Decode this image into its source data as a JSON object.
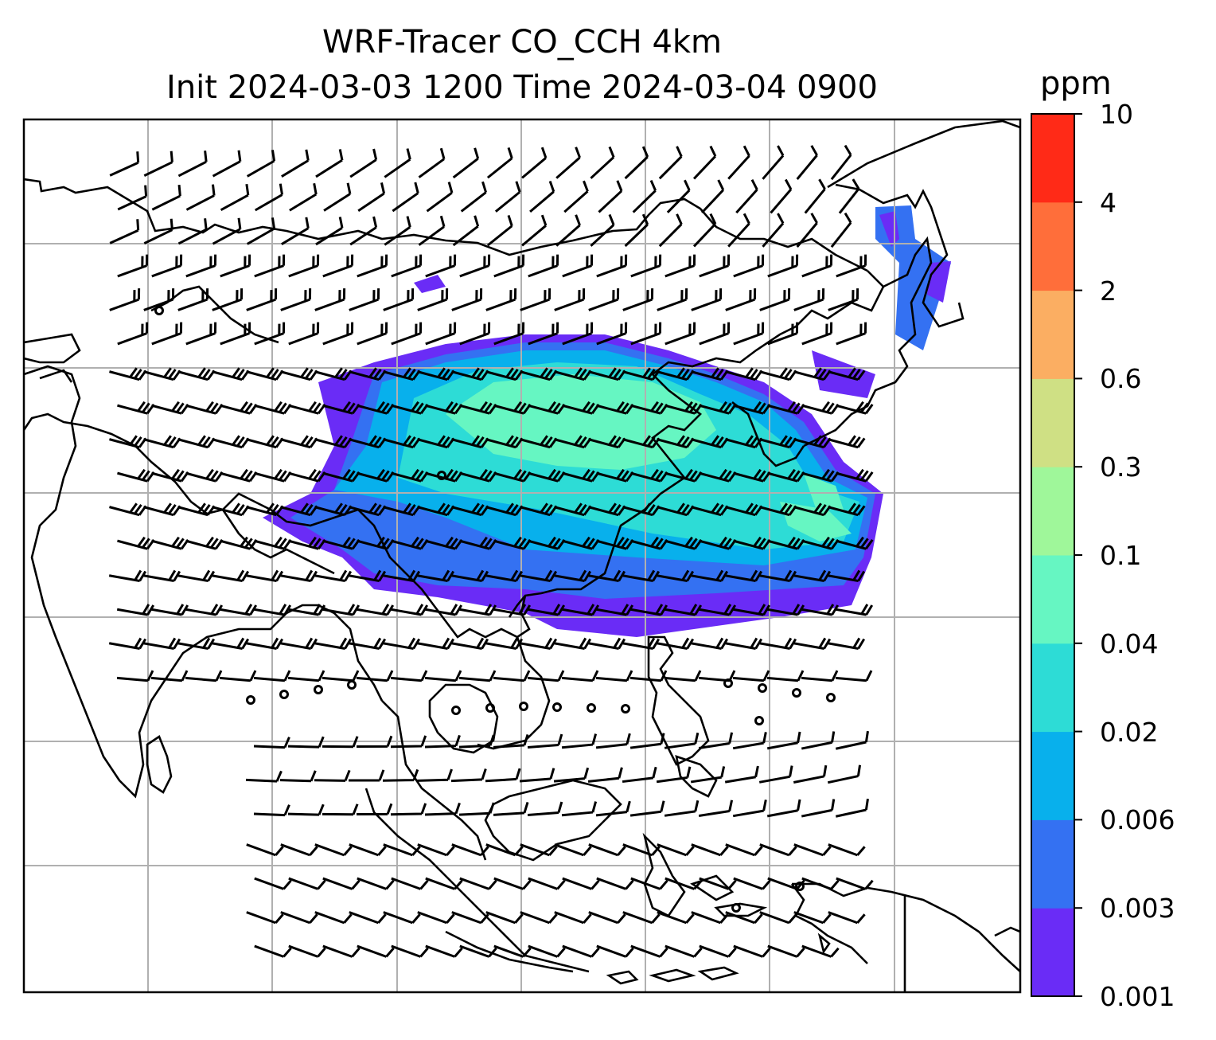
{
  "title": {
    "line1": "WRF-Tracer CO_CCH 4km",
    "line2": "Init 2024-03-03 1200 Time 2024-03-04 0900"
  },
  "colorbar": {
    "unit": "ppm",
    "levels": [
      "0.001",
      "0.003",
      "0.006",
      "0.02",
      "0.04",
      "0.1",
      "0.3",
      "0.6",
      "2",
      "4",
      "10"
    ],
    "colors": [
      "#6a2cf6",
      "#3471f2",
      "#08b0ec",
      "#2ddcd6",
      "#66f6c2",
      "#9ff79a",
      "#cfe084",
      "#fbae62",
      "#ff6e3a",
      "#ff2a17"
    ]
  },
  "map": {
    "gridlines": true,
    "coastline_color": "#000000",
    "grid_color": "#b0b0b0"
  }
}
